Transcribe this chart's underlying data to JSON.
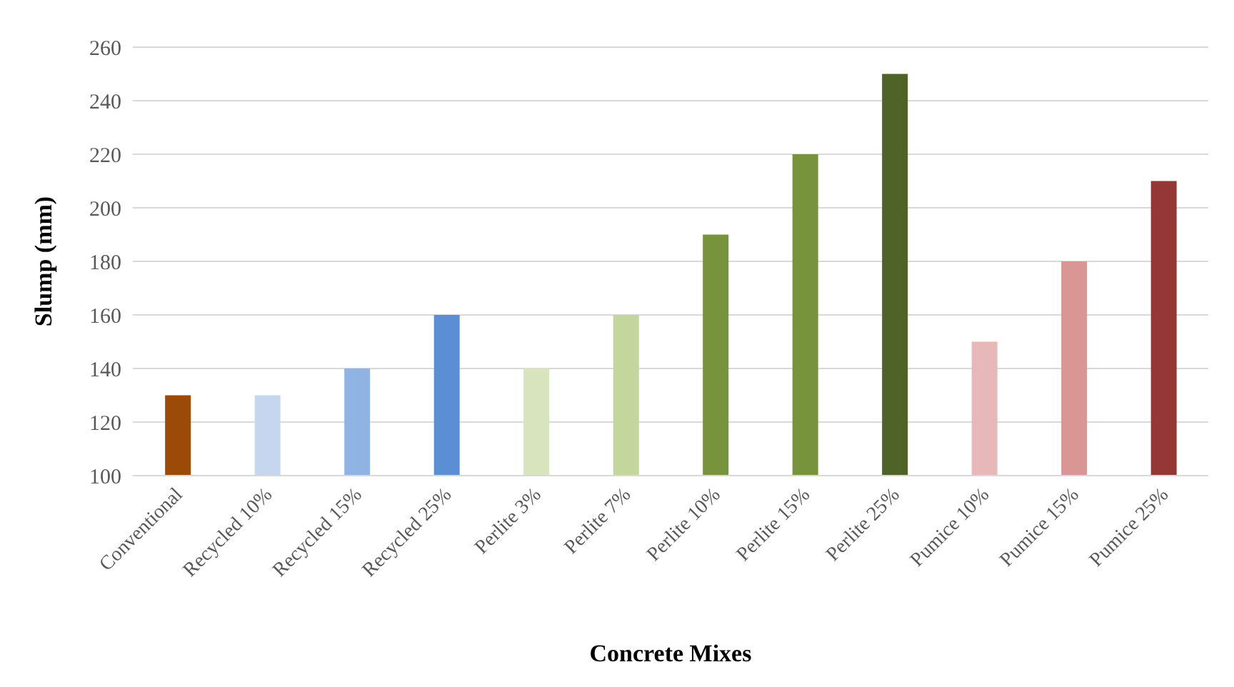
{
  "chart_data": {
    "type": "bar",
    "xlabel": "Concrete Mixes",
    "ylabel": "Slump (mm)",
    "categories": [
      "Conventional",
      "Recycled 10%",
      "Recycled 15%",
      "Recycled 25%",
      "Perlite 3%",
      "Perlite 7%",
      "Perlite 10%",
      "Perlite 15%",
      "Perlite 25%",
      "Pumice 10%",
      "Pumice 15%",
      "Pumice 25%"
    ],
    "values": [
      130,
      130,
      140,
      160,
      140,
      160,
      190,
      220,
      250,
      150,
      180,
      210
    ],
    "colors": [
      "#9c4a08",
      "#c5d7ef",
      "#8fb4e3",
      "#5a8fd6",
      "#d7e4bd",
      "#c3d69b",
      "#77933c",
      "#77933c",
      "#4f6228",
      "#e6b9b8",
      "#d99694",
      "#953735"
    ],
    "ylim": [
      100,
      260
    ],
    "yticks": [
      100,
      120,
      140,
      160,
      180,
      200,
      220,
      240,
      260
    ],
    "grid": "y",
    "legend": false
  }
}
